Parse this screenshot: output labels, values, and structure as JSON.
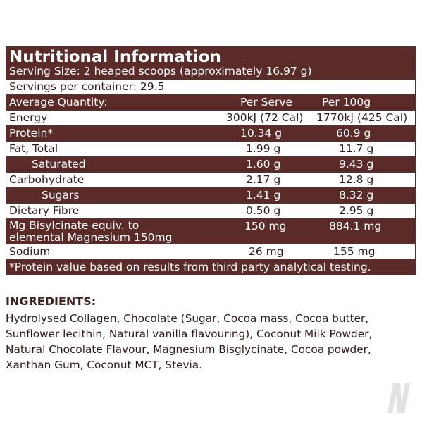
{
  "header": {
    "title": "Nutritional Information",
    "serving_size": "Serving Size: 2 heaped scoops (approximately 16.97 g)",
    "servings_per_container": "Servings per container: 29.5"
  },
  "columns": {
    "name": "Average Quantity:",
    "per_serve": "Per Serve",
    "per_100g": "Per 100g"
  },
  "rows": [
    {
      "name": "Energy",
      "per_serve": "300kJ (72 Cal)",
      "per_100g": "1770kJ (425 Cal)"
    },
    {
      "name": "Protein*",
      "per_serve": "10.34 g",
      "per_100g": "60.9 g"
    },
    {
      "name": "Fat, Total",
      "per_serve": "1.99 g",
      "per_100g": "11.7 g"
    },
    {
      "name": "Saturated",
      "per_serve": "1.60 g",
      "per_100g": "9.43 g"
    },
    {
      "name": "Carbohydrate",
      "per_serve": "2.17 g",
      "per_100g": "12.8 g"
    },
    {
      "name": "Sugars",
      "per_serve": "1.41 g",
      "per_100g": "8.32 g"
    },
    {
      "name": "Dietary Fibre",
      "per_serve": "0.50 g",
      "per_100g": "2.95 g"
    },
    {
      "name_line1": "Mg Bisylcinate equiv. to",
      "name_line2": "elemental Magnesium 150mg",
      "per_serve": "150 mg",
      "per_100g": "884.1 mg"
    },
    {
      "name": "Sodium",
      "per_serve": "26 mg",
      "per_100g": "155 mg"
    }
  ],
  "footnote": "*Protein value based on results from third party analytical testing.",
  "ingredients": {
    "title": "INGREDIENTS:",
    "line1": "Hydrolysed Collagen, Chocolate (Sugar, Cocoa mass, Cocoa butter,",
    "line2": "Sunflower lecithin, Natural vanilla flavouring), Coconut Milk Powder,",
    "line3": "Natural Chocolate Flavour, Magnesium Bisglycinate, Cocoa powder,",
    "line4": "Xanthan Gum, Coconut MCT, Stevia."
  },
  "colors": {
    "brand": "#5b2b2a",
    "text": "#2e1a18"
  }
}
